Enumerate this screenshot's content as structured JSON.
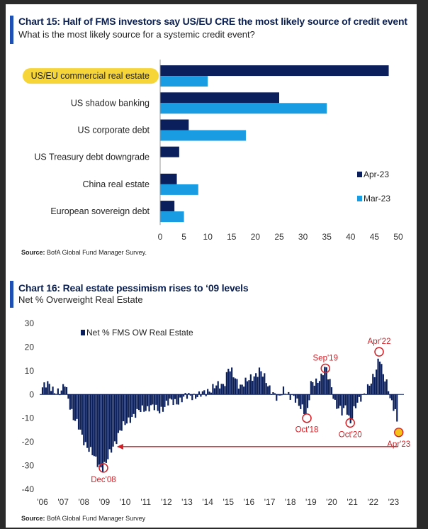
{
  "chart_data": [
    {
      "type": "bar",
      "orientation": "horizontal",
      "title": "Chart 15: Half of FMS investors say US/EU CRE the most likely source of credit event",
      "subtitle": "What is the most likely source for a systemic credit event?",
      "categories": [
        "US/EU commercial real estate",
        "US shadow banking",
        "US corporate debt",
        "US Treasury debt downgrade",
        "China real estate",
        "European sovereign debt"
      ],
      "series": [
        {
          "name": "Apr-23",
          "color": "#0b1f5c",
          "values": [
            48,
            25,
            6,
            4,
            3.5,
            3
          ]
        },
        {
          "name": "Mar-23",
          "color": "#1a9ce3",
          "values": [
            10,
            35,
            18,
            0,
            8,
            5
          ]
        }
      ],
      "xticks": [
        "0",
        "5",
        "10",
        "15",
        "20",
        "25",
        "30",
        "35",
        "40",
        "45",
        "50"
      ],
      "xlim": [
        0,
        50
      ],
      "legend_position": "right",
      "highlight_category": "US/EU commercial real estate",
      "highlight_color": "#f6d32d",
      "source": "BofA Global Fund Manager Survey.",
      "source_label": "Source:"
    },
    {
      "type": "bar",
      "title": "Chart 16: Real estate pessimism rises to ‘09 levels",
      "subtitle": "Net % Overweight Real Estate",
      "series": [
        {
          "name": "Net % FMS OW Real Estate",
          "color": "#0b1f5c"
        }
      ],
      "x_start": 2006,
      "x_end": 2023.5,
      "xticks": [
        "'06",
        "'07",
        "'08",
        "'09",
        "'10",
        "'11",
        "'12",
        "'13",
        "'14",
        "'15",
        "'16",
        "'17",
        "'18",
        "'19",
        "'20",
        "'21",
        "'22",
        "'23"
      ],
      "yticks": [
        "30",
        "20",
        "10",
        "0",
        "-10",
        "-20",
        "-30",
        "-40"
      ],
      "ylim": [
        -40,
        30
      ],
      "anchors": [
        [
          2006.0,
          3
        ],
        [
          2006.3,
          4
        ],
        [
          2006.6,
          2
        ],
        [
          2006.9,
          0
        ],
        [
          2007.1,
          5
        ],
        [
          2007.3,
          -3
        ],
        [
          2007.5,
          -10
        ],
        [
          2007.8,
          -15
        ],
        [
          2008.0,
          -19
        ],
        [
          2008.3,
          -24
        ],
        [
          2008.6,
          -28
        ],
        [
          2008.9,
          -31
        ],
        [
          2009.1,
          -29
        ],
        [
          2009.4,
          -22
        ],
        [
          2009.7,
          -16
        ],
        [
          2010.0,
          -13
        ],
        [
          2010.3,
          -9
        ],
        [
          2010.6,
          -8
        ],
        [
          2010.9,
          -6
        ],
        [
          2011.2,
          -5
        ],
        [
          2011.6,
          -7
        ],
        [
          2012.0,
          -4
        ],
        [
          2012.4,
          -3
        ],
        [
          2012.8,
          -2
        ],
        [
          2013.2,
          0
        ],
        [
          2013.6,
          -1
        ],
        [
          2014.0,
          2
        ],
        [
          2014.4,
          3
        ],
        [
          2014.8,
          5
        ],
        [
          2015.0,
          11
        ],
        [
          2015.3,
          7
        ],
        [
          2015.6,
          4
        ],
        [
          2015.9,
          5
        ],
        [
          2016.2,
          8
        ],
        [
          2016.5,
          10
        ],
        [
          2016.8,
          6
        ],
        [
          2017.1,
          2
        ],
        [
          2017.4,
          -3
        ],
        [
          2017.7,
          3
        ],
        [
          2018.0,
          -1
        ],
        [
          2018.3,
          -3
        ],
        [
          2018.6,
          -5
        ],
        [
          2018.8,
          -10
        ],
        [
          2019.0,
          4
        ],
        [
          2019.2,
          6
        ],
        [
          2019.5,
          7
        ],
        [
          2019.7,
          11
        ],
        [
          2020.0,
          4
        ],
        [
          2020.2,
          -5
        ],
        [
          2020.5,
          -8
        ],
        [
          2020.7,
          -4
        ],
        [
          2020.9,
          -12
        ],
        [
          2021.1,
          -7
        ],
        [
          2021.4,
          -1
        ],
        [
          2021.7,
          2
        ],
        [
          2021.9,
          4
        ],
        [
          2022.1,
          9
        ],
        [
          2022.2,
          12
        ],
        [
          2022.3,
          18
        ],
        [
          2022.5,
          8
        ],
        [
          2022.7,
          3
        ],
        [
          2022.9,
          -3
        ],
        [
          2023.1,
          -6
        ],
        [
          2023.2,
          -15
        ]
      ],
      "annotations": [
        {
          "label": "Dec'08",
          "x": 2008.95,
          "y": -31,
          "label_pos": "below",
          "marker": "circle"
        },
        {
          "label": "Oct'18",
          "x": 2018.8,
          "y": -10,
          "label_pos": "below",
          "marker": "circle"
        },
        {
          "label": "Sep'19",
          "x": 2019.7,
          "y": 11,
          "label_pos": "above",
          "marker": "circle"
        },
        {
          "label": "Oct'20",
          "x": 2020.9,
          "y": -12,
          "label_pos": "below",
          "marker": "circle"
        },
        {
          "label": "Apr'22",
          "x": 2022.3,
          "y": 18,
          "label_pos": "above",
          "marker": "circle"
        },
        {
          "label": "Apr'23",
          "x": 2023.25,
          "y": -16,
          "label_pos": "below",
          "marker": "highlight"
        }
      ],
      "reference_arrow": {
        "y": -22,
        "from_x": 2023.2,
        "to_x": 2009.6,
        "color": "#d21f26"
      },
      "legend_position": "top-left",
      "source": "BofA Global Fund Manager Survey",
      "source_label": "Source:"
    }
  ]
}
